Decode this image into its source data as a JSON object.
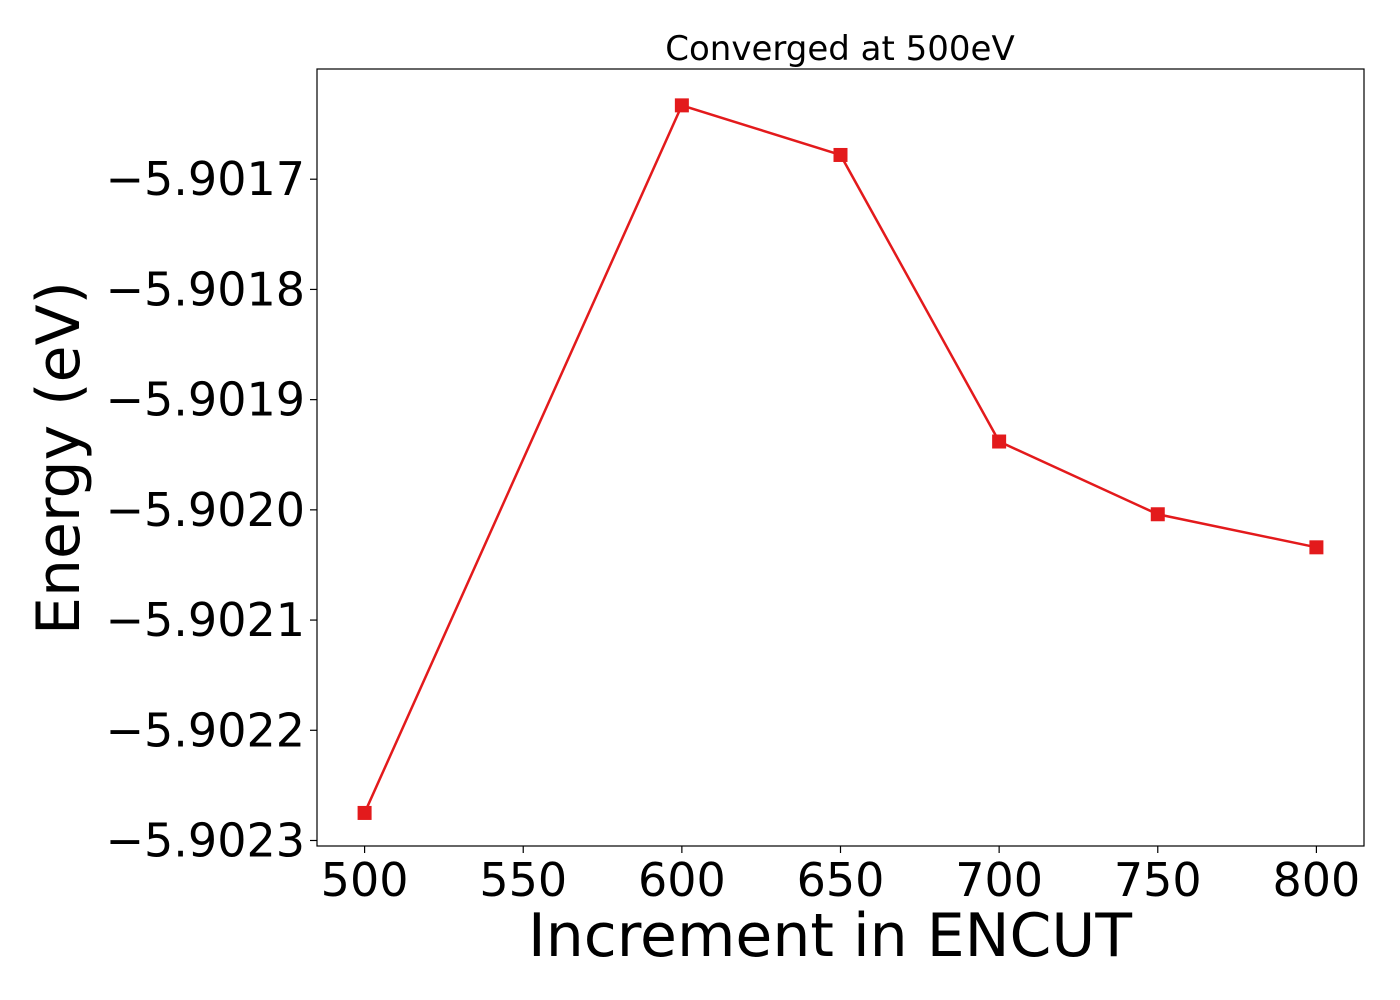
{
  "chart_data": {
    "type": "line",
    "title": "Converged at 500eV",
    "xlabel": "Increment in ENCUT",
    "ylabel": "Energy (eV)",
    "x": [
      500,
      600,
      650,
      700,
      750,
      800
    ],
    "series": [
      {
        "values": [
          -5.902275,
          -5.901633,
          -5.901678,
          -5.901938,
          -5.902004,
          -5.902034
        ],
        "color": "#e31a1c",
        "marker": "square"
      }
    ],
    "xticks": [
      500,
      550,
      600,
      650,
      700,
      750,
      800
    ],
    "xtick_labels": [
      "500",
      "550",
      "600",
      "650",
      "700",
      "750",
      "800"
    ],
    "yticks": [
      -5.9023,
      -5.9022,
      -5.9021,
      -5.902,
      -5.9019,
      -5.9018,
      -5.9017
    ],
    "ytick_labels": [
      "−5.9023",
      "−5.9022",
      "−5.9021",
      "−5.9020",
      "−5.9019",
      "−5.9018",
      "−5.9017"
    ],
    "xlim": [
      485,
      815
    ],
    "ylim": [
      -5.902305,
      -5.9016
    ],
    "grid": false,
    "legend": "none"
  }
}
